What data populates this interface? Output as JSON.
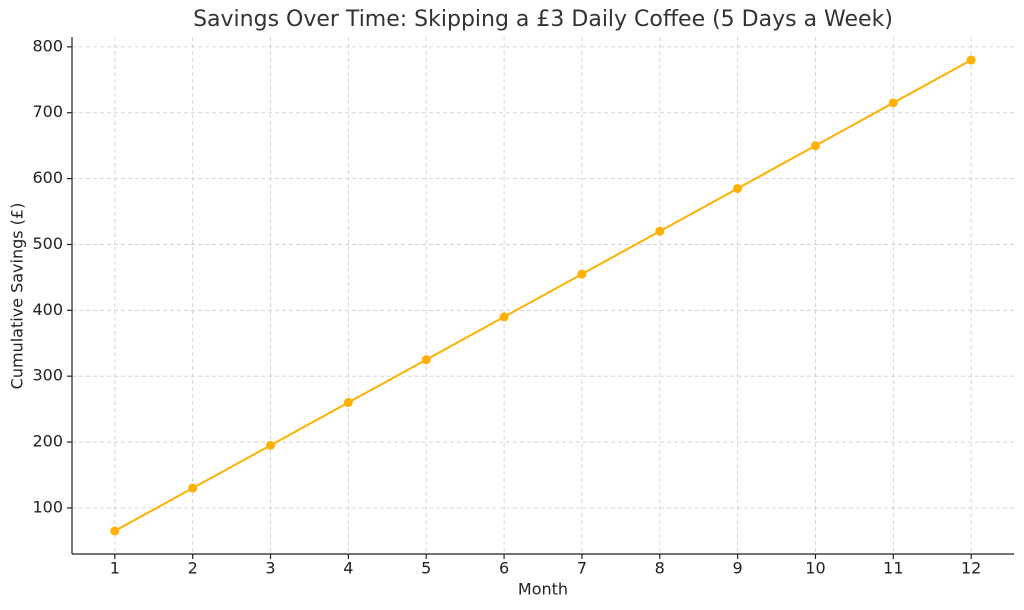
{
  "chart_data": {
    "type": "line",
    "title": "Savings Over Time: Skipping a £3 Daily Coffee (5 Days a Week)",
    "x_label": "Month",
    "y_label": "Cumulative Savings (£)",
    "x": [
      1,
      2,
      3,
      4,
      5,
      6,
      7,
      8,
      9,
      10,
      11,
      12
    ],
    "series": [
      {
        "name": "Cumulative Savings",
        "color": "#ffb000",
        "values": [
          65,
          130,
          195,
          260,
          325,
          390,
          455,
          520,
          585,
          650,
          715,
          780
        ]
      }
    ],
    "xlim": [
      0.45,
      12.55
    ],
    "xticks": [
      1,
      2,
      3,
      4,
      5,
      6,
      7,
      8,
      9,
      10,
      11,
      12
    ],
    "ylim": [
      30,
      815
    ],
    "yticks": [
      100,
      200,
      300,
      400,
      500,
      600,
      700,
      800
    ],
    "grid": true,
    "marker": "circle"
  }
}
